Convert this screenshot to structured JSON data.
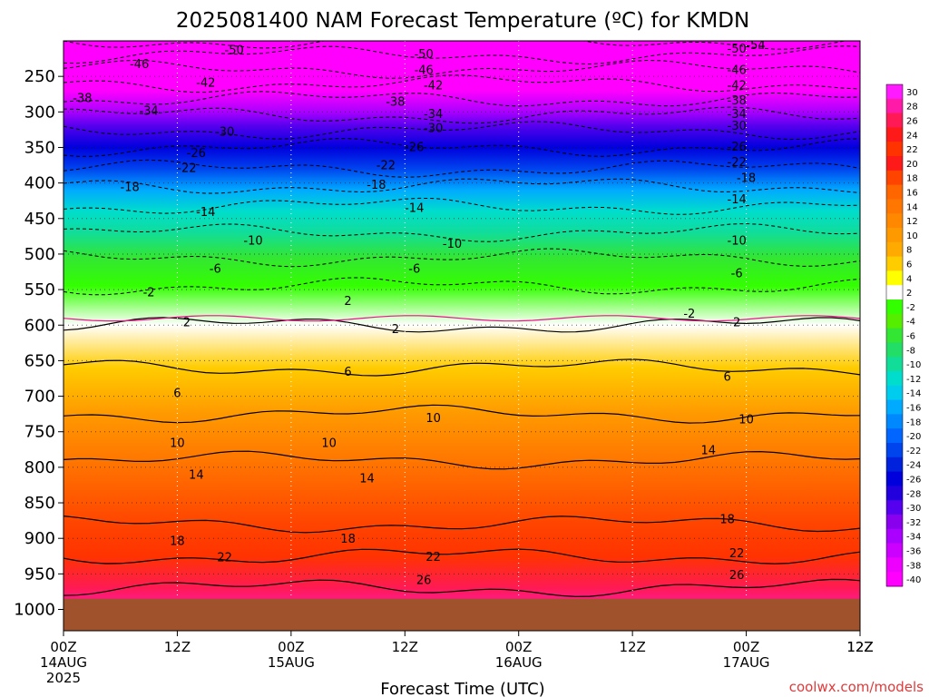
{
  "chart_data": {
    "type": "heatmap",
    "title": "2025081400 NAM Forecast Temperature (ºC) for KMDN",
    "xlabel": "Forecast Time (UTC)",
    "ylabel": "",
    "credit": "coolwx.com/models",
    "x_ticks": [
      {
        "hour": 0,
        "l1": "00Z",
        "l2": "14AUG",
        "l3": "2025"
      },
      {
        "hour": 12,
        "l1": "12Z",
        "l2": "",
        "l3": ""
      },
      {
        "hour": 24,
        "l1": "00Z",
        "l2": "15AUG",
        "l3": ""
      },
      {
        "hour": 36,
        "l1": "12Z",
        "l2": "",
        "l3": ""
      },
      {
        "hour": 48,
        "l1": "00Z",
        "l2": "16AUG",
        "l3": ""
      },
      {
        "hour": 60,
        "l1": "12Z",
        "l2": "",
        "l3": ""
      },
      {
        "hour": 72,
        "l1": "00Z",
        "l2": "17AUG",
        "l3": ""
      },
      {
        "hour": 84,
        "l1": "12Z",
        "l2": "",
        "l3": ""
      }
    ],
    "xlim_hours": [
      0,
      84
    ],
    "y_ticks": [
      "250",
      "300",
      "350",
      "400",
      "450",
      "500",
      "550",
      "600",
      "650",
      "700",
      "750",
      "800",
      "850",
      "900",
      "950",
      "1000"
    ],
    "ylim_hpa": [
      200,
      1030
    ],
    "ground_hpa": 985,
    "colorbar": {
      "labels": [
        "30",
        "28",
        "26",
        "24",
        "22",
        "20",
        "18",
        "16",
        "14",
        "12",
        "10",
        "8",
        "6",
        "4",
        "2",
        "-2",
        "-4",
        "-6",
        "-8",
        "-10",
        "-12",
        "-14",
        "-16",
        "-18",
        "-20",
        "-22",
        "-24",
        "-26",
        "-28",
        "-30",
        "-32",
        "-34",
        "-36",
        "-38",
        "-40"
      ],
      "colors": [
        "#ff1aff",
        "#ff1aa8",
        "#ff1a55",
        "#ff1a1a",
        "#ff3300",
        "#ff1a1a",
        "#ff4400",
        "#ff6600",
        "#ff7700",
        "#ff8800",
        "#ff9900",
        "#ffaa00",
        "#ffcc00",
        "#ffff00",
        "#ffffff",
        "#33ff00",
        "#55ee00",
        "#33e633",
        "#22dd66",
        "#11dd99",
        "#00ddcc",
        "#00ccee",
        "#00aaff",
        "#0088ff",
        "#0066ff",
        "#0044ee",
        "#0022dd",
        "#0000dd",
        "#2200dd",
        "#5500ee",
        "#8800ee",
        "#aa00ff",
        "#cc00ff",
        "#ee00ff",
        "#ff00ff"
      ]
    },
    "levels_c": [
      -54,
      -50,
      -46,
      -42,
      -38,
      -34,
      -30,
      -26,
      -22,
      -18,
      -14,
      -10,
      -6,
      -2,
      2,
      6,
      10,
      14,
      18,
      22,
      26
    ],
    "profile": [
      {
        "p": 200,
        "t": -54
      },
      {
        "p": 210,
        "t": -52
      },
      {
        "p": 230,
        "t": -48
      },
      {
        "p": 250,
        "t": -44
      },
      {
        "p": 270,
        "t": -40
      },
      {
        "p": 300,
        "t": -35
      },
      {
        "p": 320,
        "t": -31
      },
      {
        "p": 350,
        "t": -26
      },
      {
        "p": 380,
        "t": -22
      },
      {
        "p": 410,
        "t": -17
      },
      {
        "p": 440,
        "t": -13
      },
      {
        "p": 470,
        "t": -10
      },
      {
        "p": 505,
        "t": -6
      },
      {
        "p": 545,
        "t": -2
      },
      {
        "p": 600,
        "t": 2
      },
      {
        "p": 660,
        "t": 6
      },
      {
        "p": 725,
        "t": 10
      },
      {
        "p": 790,
        "t": 14
      },
      {
        "p": 880,
        "t": 18
      },
      {
        "p": 925,
        "t": 22
      },
      {
        "p": 970,
        "t": 26
      },
      {
        "p": 1000,
        "t": 28
      }
    ],
    "contour_labels": [
      {
        "v": "-50",
        "h": 18,
        "p": 212
      },
      {
        "v": "-50",
        "h": 38,
        "p": 218
      },
      {
        "v": "-50",
        "h": 71,
        "p": 210
      },
      {
        "v": "-54",
        "h": 73,
        "p": 205
      },
      {
        "v": "-46",
        "h": 8,
        "p": 232
      },
      {
        "v": "-46",
        "h": 38,
        "p": 240
      },
      {
        "v": "-46",
        "h": 71,
        "p": 240
      },
      {
        "v": "-42",
        "h": 15,
        "p": 258
      },
      {
        "v": "-42",
        "h": 39,
        "p": 262
      },
      {
        "v": "-42",
        "h": 71,
        "p": 262
      },
      {
        "v": "-38",
        "h": 2,
        "p": 280
      },
      {
        "v": "-38",
        "h": 35,
        "p": 285
      },
      {
        "v": "-38",
        "h": 71,
        "p": 283
      },
      {
        "v": "-34",
        "h": 9,
        "p": 298
      },
      {
        "v": "-34",
        "h": 39,
        "p": 302
      },
      {
        "v": "-34",
        "h": 71,
        "p": 302
      },
      {
        "v": "-30",
        "h": 17,
        "p": 327
      },
      {
        "v": "-30",
        "h": 39,
        "p": 322
      },
      {
        "v": "-30",
        "h": 71,
        "p": 319
      },
      {
        "v": "-26",
        "h": 14,
        "p": 357
      },
      {
        "v": "-26",
        "h": 37,
        "p": 349
      },
      {
        "v": "-26",
        "h": 71,
        "p": 348
      },
      {
        "v": "-22",
        "h": 13,
        "p": 378
      },
      {
        "v": "-22",
        "h": 34,
        "p": 374
      },
      {
        "v": "-22",
        "h": 71,
        "p": 370
      },
      {
        "v": "-18",
        "h": 7,
        "p": 405
      },
      {
        "v": "-18",
        "h": 33,
        "p": 402
      },
      {
        "v": "-18",
        "h": 72,
        "p": 392
      },
      {
        "v": "-14",
        "h": 15,
        "p": 440
      },
      {
        "v": "-14",
        "h": 37,
        "p": 434
      },
      {
        "v": "-14",
        "h": 71,
        "p": 422
      },
      {
        "v": "-10",
        "h": 20,
        "p": 480
      },
      {
        "v": "-10",
        "h": 41,
        "p": 485
      },
      {
        "v": "-10",
        "h": 71,
        "p": 480
      },
      {
        "v": "-6",
        "h": 16,
        "p": 520
      },
      {
        "v": "-6",
        "h": 37,
        "p": 520
      },
      {
        "v": "-6",
        "h": 71,
        "p": 526
      },
      {
        "v": "-2",
        "h": 9,
        "p": 553
      },
      {
        "v": "-2",
        "h": 66,
        "p": 583
      },
      {
        "v": "2",
        "h": 30,
        "p": 565
      },
      {
        "v": "2",
        "h": 13,
        "p": 595
      },
      {
        "v": "2",
        "h": 35,
        "p": 605
      },
      {
        "v": "2",
        "h": 71,
        "p": 595
      },
      {
        "v": "6",
        "h": 12,
        "p": 695
      },
      {
        "v": "6",
        "h": 30,
        "p": 665
      },
      {
        "v": "6",
        "h": 70,
        "p": 672
      },
      {
        "v": "10",
        "h": 12,
        "p": 765
      },
      {
        "v": "10",
        "h": 28,
        "p": 765
      },
      {
        "v": "10",
        "h": 39,
        "p": 730
      },
      {
        "v": "10",
        "h": 72,
        "p": 732
      },
      {
        "v": "14",
        "h": 14,
        "p": 810
      },
      {
        "v": "14",
        "h": 32,
        "p": 815
      },
      {
        "v": "14",
        "h": 68,
        "p": 775
      },
      {
        "v": "18",
        "h": 12,
        "p": 903
      },
      {
        "v": "18",
        "h": 30,
        "p": 900
      },
      {
        "v": "18",
        "h": 70,
        "p": 872
      },
      {
        "v": "22",
        "h": 17,
        "p": 926
      },
      {
        "v": "22",
        "h": 39,
        "p": 925
      },
      {
        "v": "22",
        "h": 71,
        "p": 920
      },
      {
        "v": "26",
        "h": 38,
        "p": 958
      },
      {
        "v": "26",
        "h": 71,
        "p": 951
      }
    ]
  }
}
